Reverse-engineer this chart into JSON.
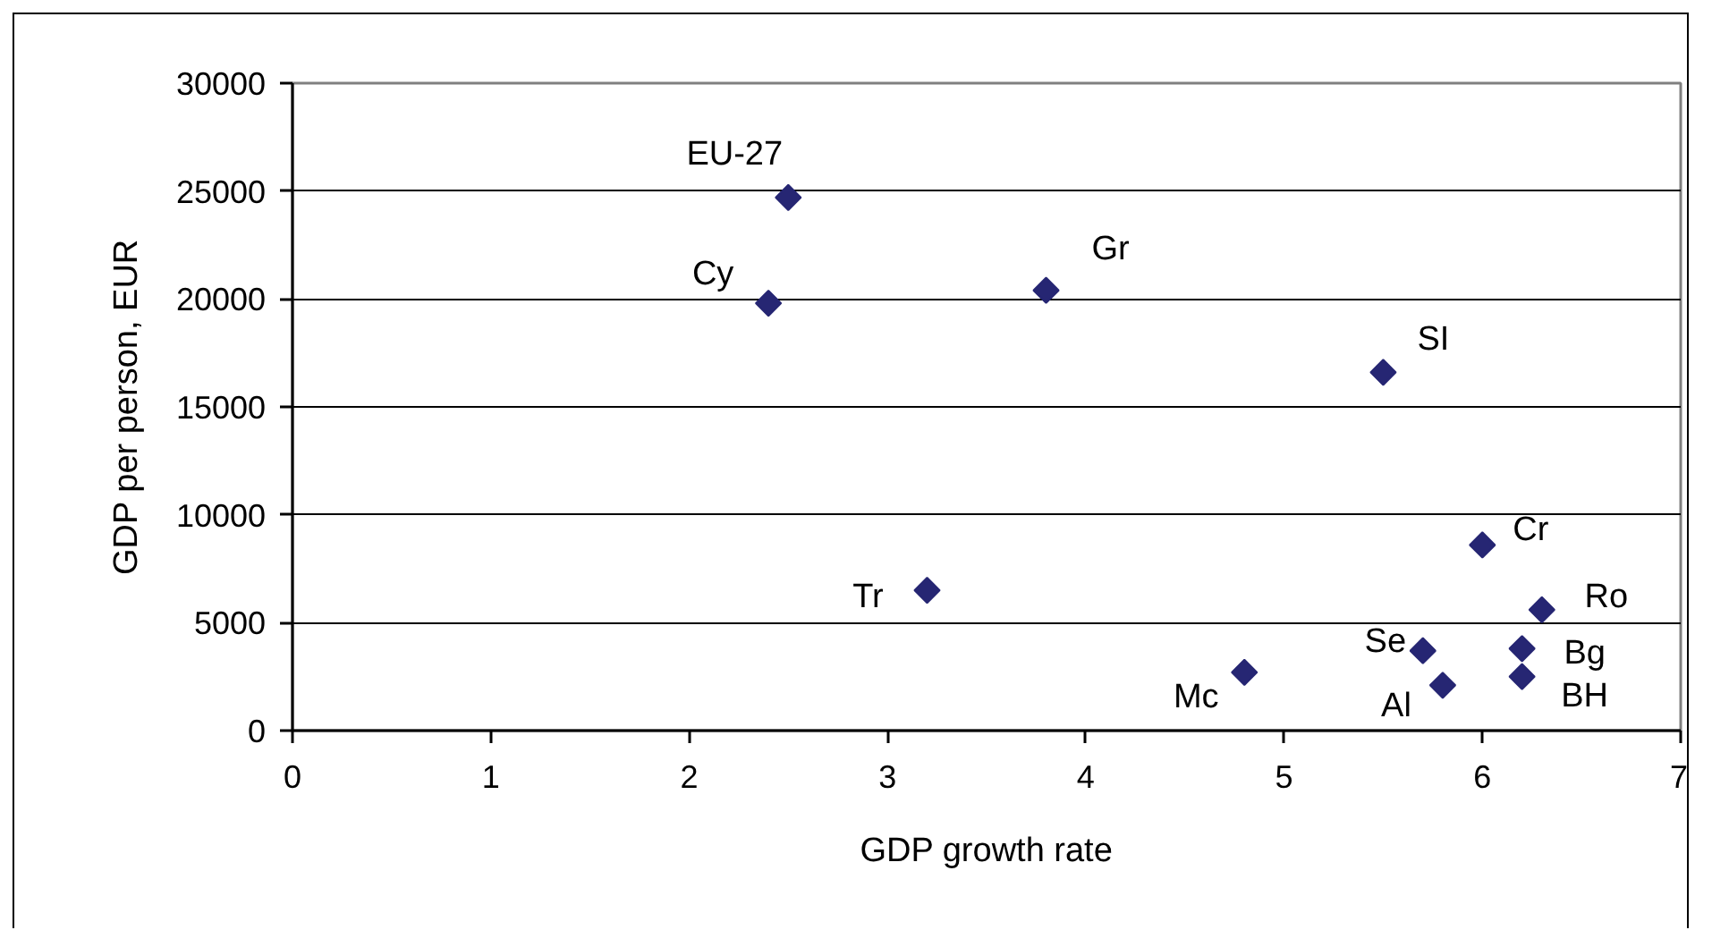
{
  "chart_data": {
    "type": "scatter",
    "xlabel": "GDP growth rate",
    "ylabel": "GDP per person, EUR",
    "x": [
      2.5,
      2.4,
      3.8,
      5.5,
      6.0,
      3.2,
      6.3,
      5.7,
      6.2,
      6.2,
      4.8,
      5.8
    ],
    "series": [
      {
        "color": "#262673",
        "values": [
          24700,
          19800,
          20400,
          16600,
          8600,
          6500,
          5600,
          3700,
          3800,
          2500,
          2700,
          2100
        ]
      }
    ],
    "marker": "diamond",
    "xlim": [
      0,
      7
    ],
    "ylim": [
      0,
      30000
    ],
    "xticks": [
      0,
      1,
      2,
      3,
      4,
      5,
      6,
      7
    ],
    "yticks": [
      0,
      5000,
      10000,
      15000,
      20000,
      25000,
      30000
    ],
    "grid": "y",
    "annotations": [
      {
        "text": "EU-27",
        "x": 2.5,
        "y": 24700
      },
      {
        "text": "Cy",
        "x": 2.4,
        "y": 19800
      },
      {
        "text": "Gr",
        "x": 3.8,
        "y": 20400
      },
      {
        "text": "SI",
        "x": 5.5,
        "y": 16600
      },
      {
        "text": "Cr",
        "x": 6.0,
        "y": 8600
      },
      {
        "text": "Tr",
        "x": 3.2,
        "y": 6500
      },
      {
        "text": "Ro",
        "x": 6.3,
        "y": 5600
      },
      {
        "text": "Se",
        "x": 5.7,
        "y": 3700
      },
      {
        "text": "Bg",
        "x": 6.2,
        "y": 3800
      },
      {
        "text": "BH",
        "x": 6.2,
        "y": 2500
      },
      {
        "text": "Mc",
        "x": 4.8,
        "y": 2700
      },
      {
        "text": "Al",
        "x": 5.8,
        "y": 2100
      }
    ]
  }
}
